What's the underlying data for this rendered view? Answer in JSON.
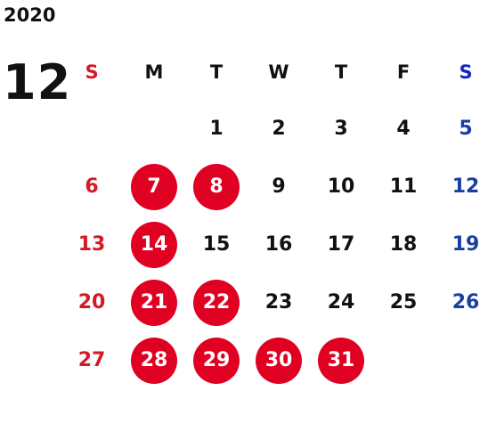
{
  "year": "2020",
  "month": "12",
  "weekdays": [
    "S",
    "M",
    "T",
    "W",
    "T",
    "F",
    "S"
  ],
  "weeks": [
    [
      "",
      "",
      "1",
      "2",
      "3",
      "4",
      "5"
    ],
    [
      "6",
      "7",
      "8",
      "9",
      "10",
      "11",
      "12"
    ],
    [
      "13",
      "14",
      "15",
      "16",
      "17",
      "18",
      "19"
    ],
    [
      "20",
      "21",
      "22",
      "23",
      "24",
      "25",
      "26"
    ],
    [
      "27",
      "28",
      "29",
      "30",
      "31",
      "",
      ""
    ]
  ],
  "highlighted_days": [
    "7",
    "8",
    "14",
    "21",
    "22",
    "28",
    "29",
    "30",
    "31"
  ],
  "colors": {
    "sunday": "#d51a26",
    "saturday": "#1a3f9e",
    "highlight": "#e00022"
  }
}
